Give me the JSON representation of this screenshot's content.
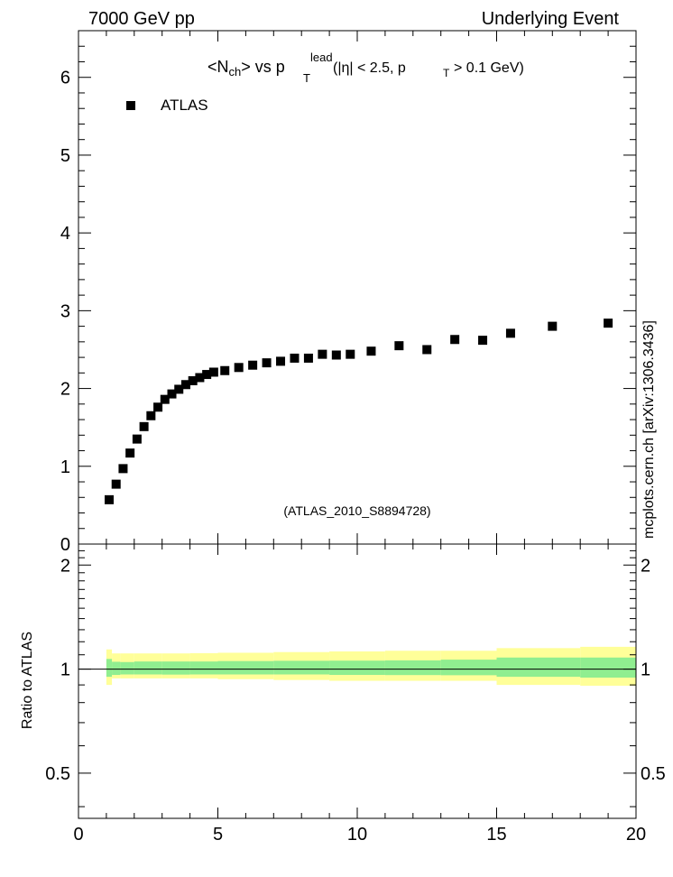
{
  "header": {
    "left": "7000 GeV pp",
    "right": "Underlying Event"
  },
  "side_label": "mcplots.cern.ch [arXiv:1306.3436]",
  "chart_data": {
    "type": "scatter",
    "title_parts": {
      "open": "<N",
      "ch": "ch",
      "vs": "> vs p",
      "lead": "lead",
      "T": "T",
      "cut1": "(|η| < 2.5, p",
      "cut2": "> 0.1 GeV)"
    },
    "legend": {
      "label": "ATLAS",
      "position": "top-left"
    },
    "watermark": "(ATLAS_2010_S8894728)",
    "xlim": [
      0,
      20
    ],
    "xticks": [
      0,
      5,
      10,
      15,
      20
    ],
    "main_panel": {
      "ylim": [
        0,
        6.6
      ],
      "yticks": [
        "0",
        "1",
        "2",
        "3",
        "4",
        "5",
        "6"
      ],
      "series": [
        {
          "name": "ATLAS",
          "color": "#000000",
          "x": [
            1.1,
            1.35,
            1.6,
            1.85,
            2.1,
            2.35,
            2.6,
            2.85,
            3.1,
            3.35,
            3.6,
            3.85,
            4.1,
            4.35,
            4.6,
            4.85,
            5.25,
            5.75,
            6.25,
            6.75,
            7.25,
            7.75,
            8.25,
            8.75,
            9.25,
            9.75,
            10.5,
            11.5,
            12.5,
            13.5,
            14.5,
            15.5,
            17.0,
            19.0
          ],
          "y": [
            0.57,
            0.77,
            0.97,
            1.17,
            1.35,
            1.51,
            1.65,
            1.76,
            1.86,
            1.93,
            1.99,
            2.05,
            2.1,
            2.14,
            2.18,
            2.21,
            2.23,
            2.27,
            2.3,
            2.33,
            2.35,
            2.39,
            2.39,
            2.44,
            2.43,
            2.44,
            2.48,
            2.55,
            2.5,
            2.63,
            2.62,
            2.71,
            2.8,
            2.84
          ]
        }
      ]
    },
    "ratio_panel": {
      "ylabel": "Ratio to ATLAS",
      "ylim": [
        0.37,
        2.3
      ],
      "yticks": [
        {
          "value": 0.5,
          "label": "0.5"
        },
        {
          "value": 1,
          "label": "1"
        },
        {
          "value": 2,
          "label": "2"
        }
      ],
      "reference": 1,
      "bands": {
        "edges": [
          1.0,
          1.2,
          1.5,
          2.0,
          3.0,
          4.0,
          5.0,
          7.0,
          9.0,
          11.0,
          13.0,
          15.0,
          18.0,
          20.0
        ],
        "inner_color": "#90ee90",
        "outer_color": "#ffff99",
        "inner_lo": [
          0.95,
          0.962,
          0.965,
          0.965,
          0.964,
          0.965,
          0.965,
          0.965,
          0.962,
          0.961,
          0.96,
          0.95,
          0.945
        ],
        "inner_hi": [
          1.07,
          1.05,
          1.048,
          1.052,
          1.052,
          1.052,
          1.055,
          1.057,
          1.058,
          1.06,
          1.065,
          1.08,
          1.08
        ],
        "outer_lo": [
          0.9,
          0.94,
          0.94,
          0.94,
          0.94,
          0.94,
          0.935,
          0.93,
          0.925,
          0.925,
          0.925,
          0.9,
          0.895
        ],
        "outer_hi": [
          1.14,
          1.11,
          1.11,
          1.11,
          1.11,
          1.112,
          1.115,
          1.12,
          1.125,
          1.13,
          1.13,
          1.15,
          1.16
        ]
      }
    }
  }
}
